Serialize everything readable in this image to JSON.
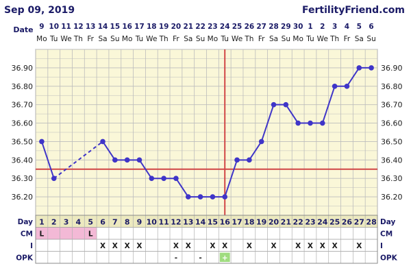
{
  "header": {
    "date": "Sep 09, 2019",
    "brand": "FertilityFriend.com"
  },
  "chart_data": {
    "type": "line",
    "title": "",
    "row_labels": {
      "date": "Date",
      "day": "Day",
      "cm": "CM",
      "intercourse": "I",
      "opk": "OPK"
    },
    "dates": [
      "9",
      "10",
      "11",
      "12",
      "13",
      "14",
      "15",
      "16",
      "17",
      "18",
      "19",
      "20",
      "21",
      "22",
      "23",
      "24",
      "25",
      "26",
      "27",
      "28",
      "29",
      "30",
      "1",
      "2",
      "3",
      "4",
      "5",
      "6"
    ],
    "weekdays": [
      "Mo",
      "Tu",
      "We",
      "Th",
      "Fr",
      "Sa",
      "Su",
      "Mo",
      "Tu",
      "We",
      "Th",
      "Fr",
      "Sa",
      "Su",
      "Mo",
      "Tu",
      "We",
      "Th",
      "Fr",
      "Sa",
      "Su",
      "Mo",
      "Tu",
      "We",
      "Th",
      "Fr",
      "Sa",
      "Su"
    ],
    "days": [
      1,
      2,
      3,
      4,
      5,
      6,
      7,
      8,
      9,
      10,
      11,
      12,
      13,
      14,
      15,
      16,
      17,
      18,
      19,
      20,
      21,
      22,
      23,
      24,
      25,
      26,
      27,
      28
    ],
    "y_ticks": [
      "36.20",
      "36.30",
      "36.40",
      "36.50",
      "36.60",
      "36.70",
      "36.80",
      "36.90"
    ],
    "ylim": [
      36.1,
      37.0
    ],
    "temperatures": [
      36.5,
      36.3,
      null,
      null,
      null,
      36.5,
      36.4,
      36.4,
      36.4,
      36.3,
      36.3,
      36.3,
      36.2,
      36.2,
      36.2,
      36.2,
      36.4,
      36.4,
      36.5,
      36.7,
      36.7,
      36.6,
      36.6,
      36.6,
      36.8,
      36.8,
      36.9,
      36.9
    ],
    "coverline": 36.35,
    "ovulation_day": 16,
    "cm": [
      "L",
      "",
      "",
      "",
      "L",
      "",
      "",
      "",
      "",
      "",
      "",
      "",
      "",
      "",
      "",
      "",
      "",
      "",
      "",
      "",
      "",
      "",
      "",
      "",
      "",
      "",
      "",
      ""
    ],
    "intercourse": [
      "",
      "",
      "",
      "",
      "",
      "X",
      "X",
      "X",
      "X",
      "",
      "",
      "X",
      "X",
      "",
      "X",
      "X",
      "",
      "X",
      "",
      "X",
      "",
      "X",
      "X",
      "X",
      "X",
      "",
      "X",
      ""
    ],
    "opk": [
      "",
      "",
      "",
      "",
      "",
      "",
      "",
      "",
      "",
      "",
      "",
      "-",
      "",
      "-",
      "",
      "+",
      "",
      "",
      "",
      "",
      "",
      "",
      "",
      "",
      "",
      "",
      "",
      ""
    ],
    "colors": {
      "grid_bg": "#faf7d8",
      "grid_line": "#bcbcbc",
      "series": "#3f35c8",
      "coverline": "#d04545",
      "row_bg": "#ece9bf",
      "cm_highlight": "#f3b9d6",
      "opk_positive": "#9fdc7f",
      "label": "#1a1a66"
    }
  }
}
